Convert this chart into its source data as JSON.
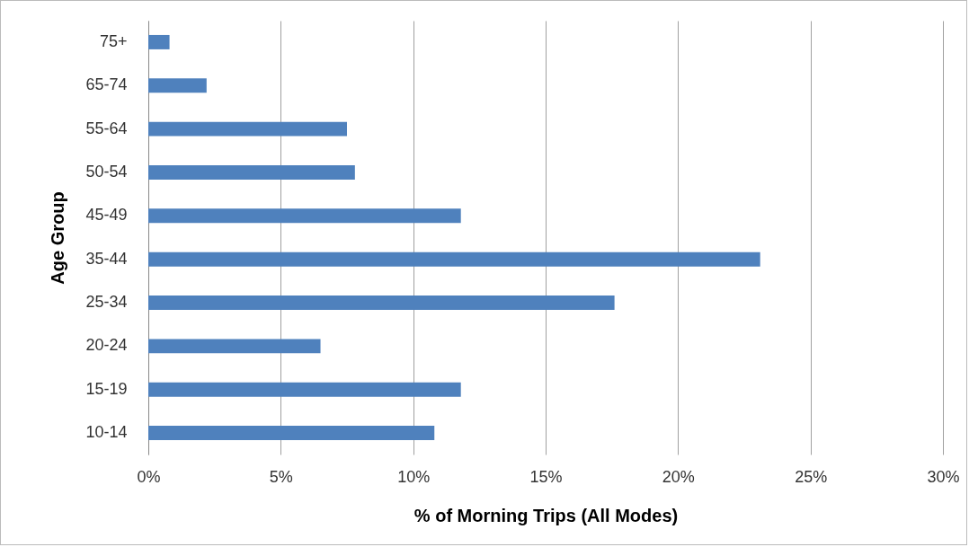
{
  "chart_data": {
    "type": "bar",
    "orientation": "horizontal",
    "xlabel": "% of Morning Trips (All Modes)",
    "ylabel": "Age Group",
    "categories": [
      "75+",
      "65-74",
      "55-64",
      "50-54",
      "45-49",
      "35-44",
      "25-34",
      "20-24",
      "15-19",
      "10-14"
    ],
    "values": [
      0.8,
      2.2,
      7.5,
      7.8,
      11.8,
      23.1,
      17.6,
      6.5,
      11.8,
      10.8
    ],
    "color": "#4f81bd",
    "xlim": [
      0,
      30
    ],
    "xticks": [
      {
        "value": 0,
        "label": "0%"
      },
      {
        "value": 5,
        "label": "5%"
      },
      {
        "value": 10,
        "label": "10%"
      },
      {
        "value": 15,
        "label": "15%"
      },
      {
        "value": 20,
        "label": "20%"
      },
      {
        "value": 25,
        "label": "25%"
      },
      {
        "value": 30,
        "label": "30%"
      }
    ],
    "grid": "x"
  }
}
